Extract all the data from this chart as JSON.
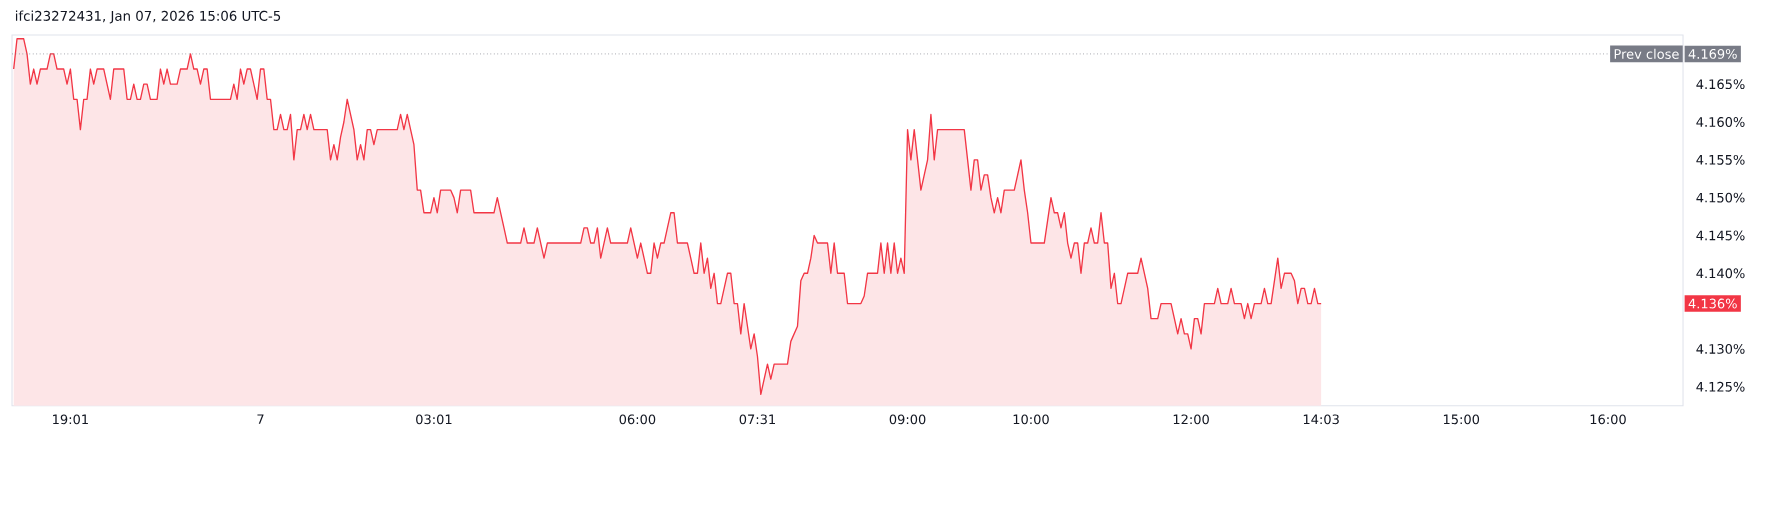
{
  "chart_data": {
    "type": "area",
    "title": "ifci23272431, Jan 07, 2026 15:06 UTC-5",
    "color": "#f23645",
    "categories": [
      null,
      null,
      null,
      null,
      null,
      null,
      null,
      null,
      null,
      null,
      null,
      null,
      null,
      null,
      null,
      null,
      null,
      "19:01",
      null,
      null,
      null,
      null,
      null,
      null,
      null,
      null,
      null,
      null,
      null,
      null,
      null,
      null,
      null,
      null,
      null,
      null,
      null,
      null,
      null,
      null,
      null,
      null,
      null,
      null,
      null,
      null,
      null,
      null,
      null,
      null,
      null,
      null,
      null,
      null,
      null,
      null,
      null,
      null,
      null,
      null,
      null,
      null,
      null,
      null,
      null,
      null,
      null,
      null,
      null,
      null,
      null,
      null,
      null,
      null,
      "7",
      null,
      null,
      null,
      null,
      null,
      null,
      null,
      null,
      null,
      null,
      null,
      null,
      null,
      null,
      null,
      null,
      null,
      null,
      null,
      null,
      null,
      null,
      null,
      null,
      null,
      null,
      null,
      null,
      null,
      null,
      null,
      null,
      null,
      null,
      null,
      null,
      null,
      null,
      null,
      null,
      null,
      null,
      null,
      null,
      null,
      null,
      null,
      null,
      null,
      null,
      null,
      "03:01",
      null,
      null,
      null,
      null,
      null,
      null,
      null,
      null,
      null,
      null,
      null,
      null,
      null,
      null,
      null,
      null,
      null,
      null,
      null,
      null,
      null,
      null,
      null,
      null,
      null,
      null,
      null,
      null,
      null,
      null,
      null,
      null,
      null,
      null,
      null,
      null,
      null,
      null,
      null,
      null,
      null,
      null,
      null,
      null,
      null,
      null,
      null,
      null,
      null,
      null,
      null,
      null,
      null,
      null,
      null,
      null,
      null,
      null,
      null,
      null,
      "06:00",
      null,
      null,
      null,
      null,
      null,
      null,
      null,
      null,
      null,
      null,
      null,
      null,
      null,
      null,
      null,
      null,
      null,
      null,
      null,
      null,
      null,
      null,
      null,
      null,
      null,
      null,
      null,
      null,
      null,
      null,
      null,
      null,
      null,
      null,
      null,
      "07:31",
      null,
      null,
      null,
      null,
      null,
      null,
      null,
      null,
      null,
      null,
      null,
      null,
      null,
      null,
      null,
      null,
      null,
      null,
      null,
      null,
      null,
      null,
      null,
      null,
      null,
      null,
      null,
      null,
      null,
      null,
      null,
      null,
      null,
      null,
      null,
      null,
      null,
      null,
      null,
      null,
      null,
      null,
      null,
      null,
      "09:00",
      null,
      null,
      null,
      null,
      null,
      null,
      null,
      null,
      null,
      null,
      null,
      null,
      null,
      null,
      null,
      null,
      null,
      null,
      null,
      null,
      null,
      null,
      null,
      null,
      null,
      null,
      null,
      null,
      null,
      null,
      null,
      null,
      null,
      null,
      null,
      null,
      "10:00",
      null,
      null,
      null,
      null,
      null,
      null,
      null,
      null,
      null,
      null,
      null,
      null,
      null,
      null,
      null,
      null,
      null,
      null,
      null,
      null,
      null,
      null,
      null,
      null,
      null,
      null,
      null,
      null,
      null,
      null,
      null,
      null,
      null,
      null,
      null,
      null,
      null,
      null,
      null,
      null,
      null,
      null,
      null,
      null,
      null,
      null,
      null,
      "12:00",
      null,
      null,
      null,
      null,
      null,
      null,
      null,
      null,
      null,
      null,
      null,
      null,
      null,
      null,
      null,
      null,
      null,
      null,
      null,
      null,
      null,
      null,
      null,
      null,
      null,
      null,
      null,
      null,
      null,
      null,
      null,
      null,
      null,
      null,
      null,
      null,
      null,
      null,
      "14:03",
      null,
      null,
      null,
      null,
      null,
      null,
      null,
      null,
      null,
      null,
      null,
      null,
      null,
      null,
      null,
      null,
      null,
      null,
      null,
      null,
      null,
      null,
      null,
      null,
      null,
      null,
      null,
      null,
      null,
      null,
      null,
      null,
      null,
      null,
      null,
      null,
      null,
      null,
      null,
      null,
      null,
      "15:00",
      null,
      null,
      null,
      null,
      null,
      null,
      null,
      null,
      null,
      null,
      null,
      null,
      null,
      null,
      null,
      null,
      null,
      null,
      null,
      null,
      null,
      null,
      null,
      null,
      null,
      null,
      null,
      null,
      null,
      null,
      null,
      null,
      null,
      null,
      null,
      null,
      null,
      null,
      null,
      null,
      null,
      null,
      null,
      "16:00",
      null,
      null,
      null,
      null,
      null,
      null,
      null,
      null,
      null,
      null,
      null,
      null,
      null,
      null,
      null,
      null,
      null,
      null,
      null,
      null,
      null,
      null
    ],
    "values": [
      4.167,
      4.171,
      4.171,
      4.171,
      4.169,
      4.165,
      4.167,
      4.165,
      4.167,
      4.167,
      4.167,
      4.169,
      4.169,
      4.167,
      4.167,
      4.167,
      4.165,
      4.167,
      4.163,
      4.163,
      4.159,
      4.163,
      4.163,
      4.167,
      4.165,
      4.167,
      4.167,
      4.167,
      4.165,
      4.163,
      4.167,
      4.167,
      4.167,
      4.167,
      4.163,
      4.163,
      4.165,
      4.163,
      4.163,
      4.165,
      4.165,
      4.163,
      4.163,
      4.163,
      4.167,
      4.165,
      4.167,
      4.165,
      4.165,
      4.165,
      4.167,
      4.167,
      4.167,
      4.169,
      4.167,
      4.167,
      4.165,
      4.167,
      4.167,
      4.163,
      4.163,
      4.163,
      4.163,
      4.163,
      4.163,
      4.163,
      4.165,
      4.163,
      4.167,
      4.165,
      4.167,
      4.167,
      4.165,
      4.163,
      4.167,
      4.167,
      4.163,
      4.163,
      4.159,
      4.159,
      4.161,
      4.159,
      4.159,
      4.161,
      4.155,
      4.159,
      4.159,
      4.161,
      4.159,
      4.161,
      4.159,
      4.159,
      4.159,
      4.159,
      4.159,
      4.155,
      4.157,
      4.155,
      4.158,
      4.16,
      4.163,
      4.161,
      4.159,
      4.155,
      4.157,
      4.155,
      4.159,
      4.159,
      4.157,
      4.159,
      4.159,
      4.159,
      4.159,
      4.159,
      4.159,
      4.159,
      4.161,
      4.159,
      4.161,
      4.159,
      4.157,
      4.151,
      4.151,
      4.148,
      4.148,
      4.148,
      4.15,
      4.148,
      4.151,
      4.151,
      4.151,
      4.151,
      4.15,
      4.148,
      4.151,
      4.151,
      4.151,
      4.151,
      4.148,
      4.148,
      4.148,
      4.148,
      4.148,
      4.148,
      4.148,
      4.15,
      4.148,
      4.146,
      4.144,
      4.144,
      4.144,
      4.144,
      4.144,
      4.146,
      4.144,
      4.144,
      4.144,
      4.146,
      4.144,
      4.142,
      4.144,
      4.144,
      4.144,
      4.144,
      4.144,
      4.144,
      4.144,
      4.144,
      4.144,
      4.144,
      4.144,
      4.146,
      4.146,
      4.144,
      4.144,
      4.146,
      4.142,
      4.144,
      4.146,
      4.144,
      4.144,
      4.144,
      4.144,
      4.144,
      4.144,
      4.146,
      4.144,
      4.142,
      4.144,
      4.142,
      4.14,
      4.14,
      4.144,
      4.142,
      4.144,
      4.144,
      4.146,
      4.148,
      4.148,
      4.144,
      4.144,
      4.144,
      4.144,
      4.142,
      4.14,
      4.14,
      4.144,
      4.14,
      4.142,
      4.138,
      4.14,
      4.136,
      4.136,
      4.138,
      4.14,
      4.14,
      4.136,
      4.136,
      4.132,
      4.136,
      4.133,
      4.13,
      4.132,
      4.129,
      4.124,
      4.126,
      4.128,
      4.126,
      4.128,
      4.128,
      4.128,
      4.128,
      4.128,
      4.131,
      4.132,
      4.133,
      4.139,
      4.14,
      4.14,
      4.142,
      4.145,
      4.144,
      4.144,
      4.144,
      4.144,
      4.14,
      4.144,
      4.14,
      4.14,
      4.14,
      4.136,
      4.136,
      4.136,
      4.136,
      4.136,
      4.137,
      4.14,
      4.14,
      4.14,
      4.14,
      4.144,
      4.14,
      4.144,
      4.14,
      4.144,
      4.14,
      4.142,
      4.14,
      4.159,
      4.155,
      4.159,
      4.155,
      4.151,
      4.153,
      4.155,
      4.161,
      4.155,
      4.159,
      4.159,
      4.159,
      4.159,
      4.159,
      4.159,
      4.159,
      4.159,
      4.159,
      4.155,
      4.151,
      4.155,
      4.155,
      4.151,
      4.153,
      4.153,
      4.15,
      4.148,
      4.15,
      4.148,
      4.151,
      4.151,
      4.151,
      4.151,
      4.153,
      4.155,
      4.151,
      4.148,
      4.144,
      4.144,
      4.144,
      4.144,
      4.144,
      4.147,
      4.15,
      4.148,
      4.148,
      4.146,
      4.148,
      4.144,
      4.142,
      4.144,
      4.144,
      4.14,
      4.144,
      4.144,
      4.146,
      4.144,
      4.144,
      4.148,
      4.144,
      4.144,
      4.138,
      4.14,
      4.136,
      4.136,
      4.138,
      4.14,
      4.14,
      4.14,
      4.14,
      4.142,
      4.14,
      4.138,
      4.134,
      4.134,
      4.134,
      4.136,
      4.136,
      4.136,
      4.136,
      4.134,
      4.132,
      4.134,
      4.132,
      4.132,
      4.13,
      4.134,
      4.134,
      4.132,
      4.136,
      4.136,
      4.136,
      4.136,
      4.138,
      4.136,
      4.136,
      4.136,
      4.138,
      4.136,
      4.136,
      4.136,
      4.134,
      4.136,
      4.134,
      4.136,
      4.136,
      4.136,
      4.138,
      4.136,
      4.136,
      4.139,
      4.142,
      4.138,
      4.14,
      4.14,
      4.14,
      4.139,
      4.136,
      4.138,
      4.138,
      4.136,
      4.136,
      4.138,
      4.136,
      4.136,
      null,
      null,
      null,
      null,
      null,
      null,
      null,
      null,
      null,
      null,
      null,
      null,
      null,
      null,
      null,
      null,
      null,
      null,
      null,
      null,
      null,
      null,
      null,
      null,
      null,
      null,
      null,
      null,
      null,
      null,
      null,
      null,
      null,
      null,
      null,
      null,
      null,
      null,
      null,
      null,
      null,
      null,
      null,
      null,
      null,
      null,
      null,
      null,
      null,
      null,
      null,
      null,
      null,
      null,
      null,
      null,
      null,
      null,
      null,
      null,
      null,
      null,
      null,
      null,
      null,
      null,
      null,
      null,
      null,
      null,
      null,
      null,
      null,
      null,
      null,
      null,
      null,
      null,
      null,
      null,
      null,
      null,
      null,
      null,
      null,
      null,
      null,
      null,
      null,
      null,
      null,
      null,
      null,
      null,
      null,
      null,
      null,
      null,
      null,
      null,
      null,
      null,
      null,
      null,
      null,
      null,
      null,
      null
    ],
    "ylim": [
      4.1225,
      4.1715
    ],
    "yticks": [
      {
        "value": 4.125,
        "label": "4.125%"
      },
      {
        "value": 4.13,
        "label": "4.130%"
      },
      {
        "value": 4.14,
        "label": "4.140%"
      },
      {
        "value": 4.145,
        "label": "4.145%"
      },
      {
        "value": 4.15,
        "label": "4.150%"
      },
      {
        "value": 4.155,
        "label": "4.155%"
      },
      {
        "value": 4.16,
        "label": "4.160%"
      },
      {
        "value": 4.165,
        "label": "4.165%"
      }
    ],
    "ref_lines": [
      {
        "axis": "y",
        "value": 4.169,
        "label": "Prev close",
        "color": "#787b86",
        "line_style": "dotted"
      }
    ],
    "annotations": [
      "4.169%",
      "4.136%"
    ]
  }
}
